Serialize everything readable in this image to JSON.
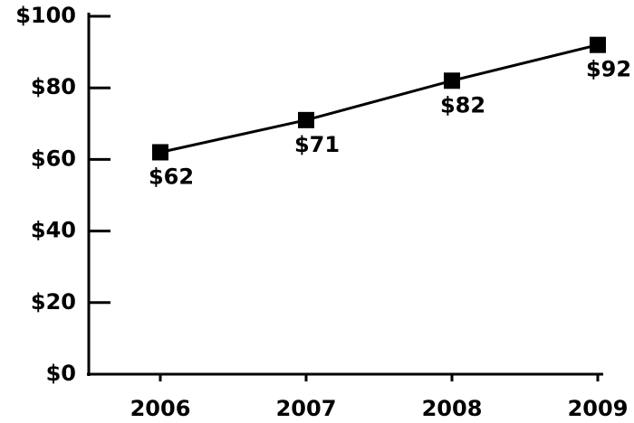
{
  "chart_data": {
    "type": "line",
    "categories": [
      "2006",
      "2007",
      "2008",
      "2009"
    ],
    "values": [
      62,
      71,
      82,
      92
    ],
    "value_labels": [
      "$62",
      "$71",
      "$82",
      "$92"
    ],
    "color": "#000000",
    "ylim": [
      0,
      100
    ],
    "yticks": [
      {
        "value": 0,
        "label": "$0"
      },
      {
        "value": 20,
        "label": "$20"
      },
      {
        "value": 40,
        "label": "$40"
      },
      {
        "value": 60,
        "label": "$60"
      },
      {
        "value": 80,
        "label": "$80"
      },
      {
        "value": 100,
        "label": "$100"
      }
    ],
    "grid": false
  }
}
